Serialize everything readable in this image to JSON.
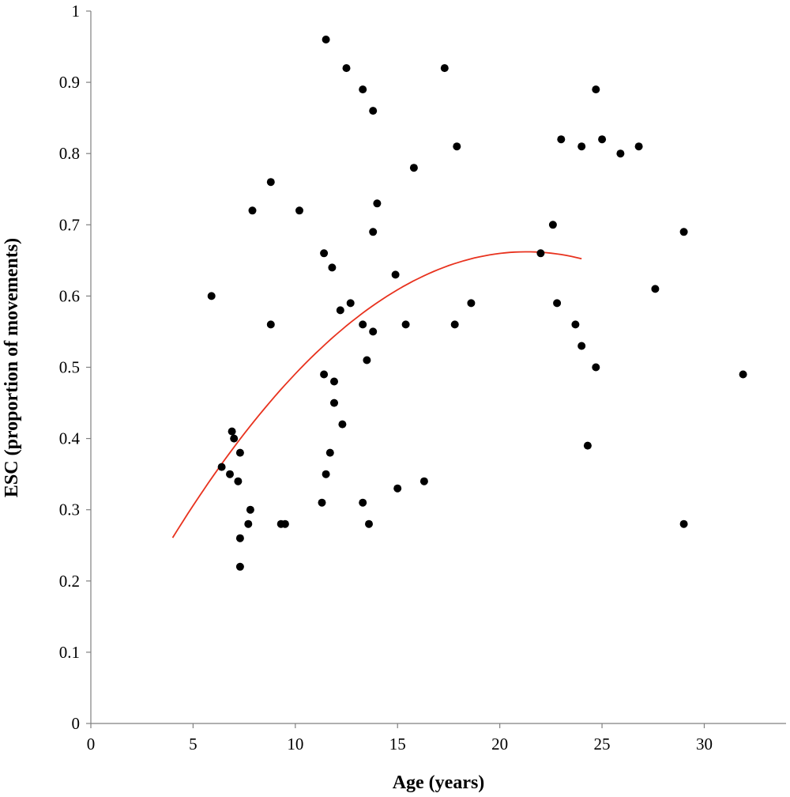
{
  "chart_data": {
    "type": "scatter",
    "xlabel": "Age (years)",
    "ylabel": "ESC (proportion of movements)",
    "xlim": [
      0,
      34
    ],
    "ylim": [
      0,
      1
    ],
    "xticks": [
      0,
      5,
      10,
      15,
      20,
      25,
      30
    ],
    "yticks": [
      0,
      0.1,
      0.2,
      0.3,
      0.4,
      0.5,
      0.6,
      0.7,
      0.8,
      0.9,
      1
    ],
    "grid": false,
    "legend": "none",
    "colors": {
      "points": "#000000",
      "fit": "#e8321e",
      "axis": "#808080"
    },
    "points": [
      [
        5.9,
        0.6
      ],
      [
        6.4,
        0.36
      ],
      [
        6.8,
        0.35
      ],
      [
        6.9,
        0.41
      ],
      [
        7.0,
        0.4
      ],
      [
        7.2,
        0.34
      ],
      [
        7.3,
        0.38
      ],
      [
        7.3,
        0.26
      ],
      [
        7.3,
        0.22
      ],
      [
        7.7,
        0.28
      ],
      [
        7.8,
        0.3
      ],
      [
        7.9,
        0.72
      ],
      [
        8.8,
        0.76
      ],
      [
        8.8,
        0.56
      ],
      [
        9.3,
        0.28
      ],
      [
        9.5,
        0.28
      ],
      [
        10.2,
        0.72
      ],
      [
        11.3,
        0.31
      ],
      [
        11.4,
        0.66
      ],
      [
        11.4,
        0.49
      ],
      [
        11.5,
        0.96
      ],
      [
        11.5,
        0.35
      ],
      [
        11.7,
        0.38
      ],
      [
        11.8,
        0.64
      ],
      [
        11.9,
        0.48
      ],
      [
        11.9,
        0.45
      ],
      [
        12.2,
        0.58
      ],
      [
        12.3,
        0.42
      ],
      [
        12.5,
        0.92
      ],
      [
        12.7,
        0.59
      ],
      [
        13.3,
        0.89
      ],
      [
        13.3,
        0.56
      ],
      [
        13.3,
        0.31
      ],
      [
        13.5,
        0.51
      ],
      [
        13.6,
        0.28
      ],
      [
        13.8,
        0.86
      ],
      [
        13.8,
        0.69
      ],
      [
        13.8,
        0.55
      ],
      [
        14.0,
        0.73
      ],
      [
        14.9,
        0.63
      ],
      [
        15.0,
        0.33
      ],
      [
        15.4,
        0.56
      ],
      [
        15.8,
        0.78
      ],
      [
        16.3,
        0.34
      ],
      [
        17.3,
        0.92
      ],
      [
        17.8,
        0.56
      ],
      [
        17.9,
        0.81
      ],
      [
        18.6,
        0.59
      ],
      [
        22.0,
        0.66
      ],
      [
        22.6,
        0.7
      ],
      [
        22.8,
        0.59
      ],
      [
        23.0,
        0.82
      ],
      [
        23.7,
        0.56
      ],
      [
        24.0,
        0.81
      ],
      [
        24.0,
        0.53
      ],
      [
        24.3,
        0.39
      ],
      [
        24.7,
        0.89
      ],
      [
        24.7,
        0.5
      ],
      [
        25.0,
        0.82
      ],
      [
        25.9,
        0.8
      ],
      [
        26.8,
        0.81
      ],
      [
        27.6,
        0.61
      ],
      [
        29.0,
        0.69
      ],
      [
        29.0,
        0.28
      ],
      [
        31.9,
        0.49
      ]
    ],
    "fit_curve": {
      "type": "quadratic",
      "x_range": [
        4,
        24
      ],
      "coefficients": {
        "a": -0.00134,
        "b": 0.0571,
        "c": 0.0538
      }
    }
  }
}
